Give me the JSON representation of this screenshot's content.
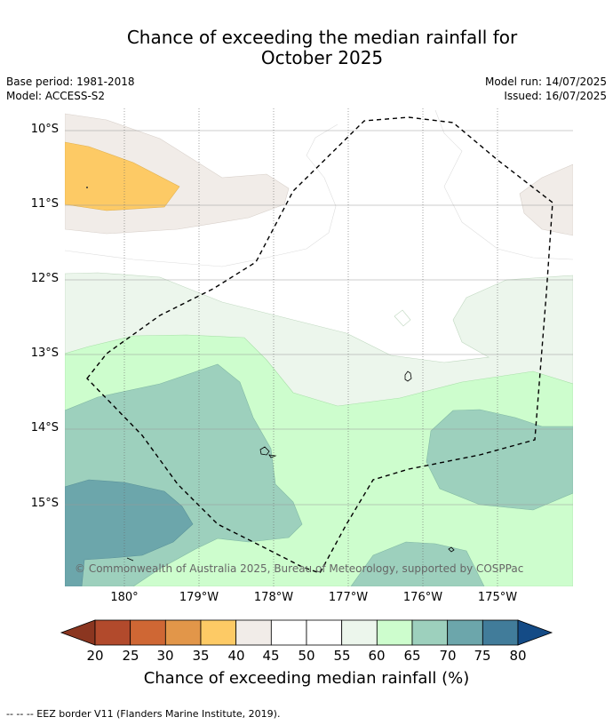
{
  "title_line1": "Chance of exceeding the median rainfall for",
  "title_line2": "October 2025",
  "base_period": "Base period: 1981-2018",
  "model": "Model: ACCESS-S2",
  "model_run": "Model run: 14/07/2025",
  "issued": "Issued: 16/07/2025",
  "lat_labels": [
    "10°S",
    "11°S",
    "12°S",
    "13°S",
    "14°S",
    "15°S"
  ],
  "lon_labels": [
    "180°",
    "179°W",
    "178°W",
    "177°W",
    "176°W",
    "175°W"
  ],
  "copyright": "© Commonwealth of Australia 2025, Bureau of Meteorology, supported by COSPPac",
  "colorbar": {
    "ticks": [
      "20",
      "25",
      "30",
      "35",
      "40",
      "45",
      "50",
      "55",
      "60",
      "65",
      "70",
      "75",
      "80"
    ],
    "colors": [
      "#b24a2c",
      "#cf6734",
      "#e29649",
      "#fdca65",
      "#f1ece8",
      "#ffffff",
      "#ffffff",
      "#ecf6ec",
      "#cdfdcd",
      "#9dd0bd",
      "#6ca6ab",
      "#417c9a"
    ],
    "low_color": "#8b3620",
    "high_color": "#144b86",
    "label": "Chance of exceeding median rainfall (%)"
  },
  "footer": "--  --  -- EEZ border V11 (Flanders Marine Institute, 2019)."
}
